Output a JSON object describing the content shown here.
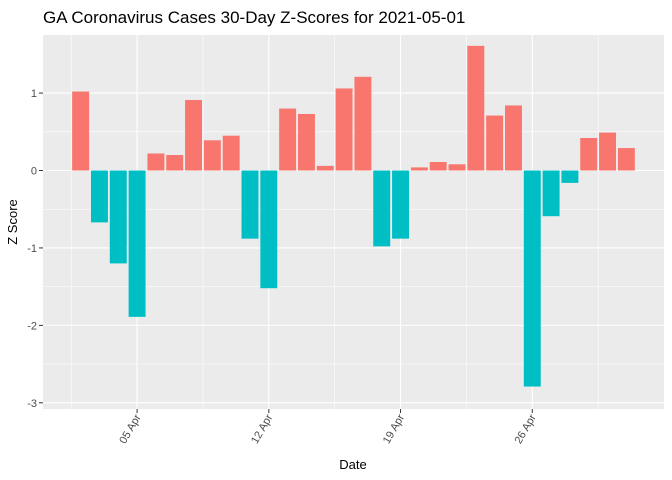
{
  "chart_data": {
    "type": "bar",
    "title": "GA Coronavirus Cases 30-Day Z-Scores for 2021-05-01",
    "xlabel": "Date",
    "ylabel": "Z Score",
    "x_dates": [
      "2021-04-02",
      "2021-04-03",
      "2021-04-04",
      "2021-04-05",
      "2021-04-06",
      "2021-04-07",
      "2021-04-08",
      "2021-04-09",
      "2021-04-10",
      "2021-04-11",
      "2021-04-12",
      "2021-04-13",
      "2021-04-14",
      "2021-04-15",
      "2021-04-16",
      "2021-04-17",
      "2021-04-18",
      "2021-04-19",
      "2021-04-20",
      "2021-04-21",
      "2021-04-22",
      "2021-04-23",
      "2021-04-24",
      "2021-04-25",
      "2021-04-26",
      "2021-04-27",
      "2021-04-28",
      "2021-04-29",
      "2021-04-30",
      "2021-05-01"
    ],
    "values": [
      1.02,
      -0.67,
      -1.2,
      -1.89,
      0.22,
      0.2,
      0.91,
      0.39,
      0.45,
      -0.88,
      -1.52,
      0.8,
      0.73,
      0.06,
      1.06,
      1.21,
      -0.98,
      -0.88,
      0.04,
      0.11,
      0.08,
      1.61,
      0.71,
      0.84,
      -2.79,
      -0.59,
      -0.16,
      0.42,
      0.49,
      0.29
    ],
    "x_ticks": [
      {
        "date": "2021-04-05",
        "label": "05 Apr"
      },
      {
        "date": "2021-04-12",
        "label": "12 Apr"
      },
      {
        "date": "2021-04-19",
        "label": "19 Apr"
      },
      {
        "date": "2021-04-26",
        "label": "26 Apr"
      }
    ],
    "y_ticks": [
      1,
      0,
      -1,
      -2,
      -3
    ],
    "ylim": [
      -3.08,
      1.75
    ],
    "xlim": [
      "2021-03-31",
      "2021-05-03"
    ],
    "grid": true,
    "legend": "none",
    "colors": {
      "positive": "#F8766D",
      "negative": "#00BFC4",
      "panel_background": "#EBEBEB",
      "grid": "#FFFFFF"
    }
  }
}
